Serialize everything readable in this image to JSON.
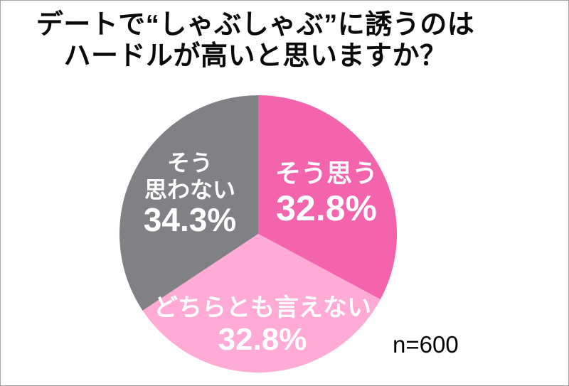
{
  "title": {
    "line1": "デートで“しゃぶしゃぶ”に誘うのは",
    "line2": "ハードルが高いと思いますか？"
  },
  "colors": {
    "agree": "#F464AC",
    "neutral": "#FFABD5",
    "disagree": "#808085",
    "label_text": "#FFFFFF",
    "title_text": "#0A0A0A",
    "background": "#FFFFFF",
    "border": "#A3A3A3"
  },
  "chart_data": {
    "type": "pie",
    "title": "デートで“しゃぶしゃぶ”に誘うのはハードルが高いと思いますか？",
    "sample_size": 600,
    "sample_size_label": "n=600",
    "start_angle_deg": 0,
    "direction": "clockwise",
    "legend": "none",
    "slices": [
      {
        "label": "そう思う",
        "value_pct": 32.8,
        "pct_label": "32.8%",
        "color": "#F464AC",
        "label_lines": [
          "そう思う"
        ]
      },
      {
        "label": "どちらとも言えない",
        "value_pct": 32.8,
        "pct_label": "32.8%",
        "color": "#FFABD5",
        "label_lines": [
          "どちらとも言えない"
        ]
      },
      {
        "label": "そう思わない",
        "value_pct": 34.3,
        "pct_label": "34.3%",
        "color": "#808085",
        "label_lines": [
          "そう",
          "思わない"
        ]
      }
    ]
  }
}
